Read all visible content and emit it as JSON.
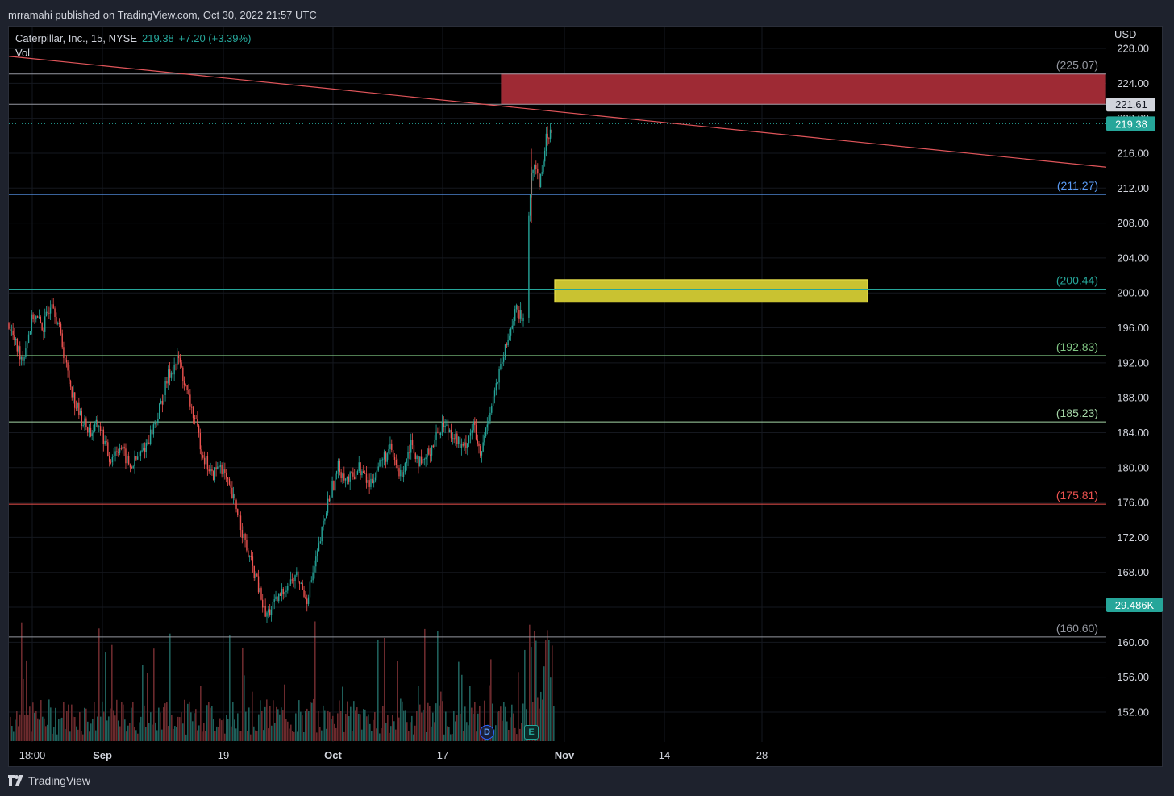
{
  "header": {
    "published_text": "mrramahi published on TradingView.com, Oct 30, 2022 21:57 UTC"
  },
  "legend": {
    "symbol": "Caterpillar, Inc., 15, NYSE",
    "price": "219.38",
    "change": "+7.20 (+3.39%)",
    "vol_label": "Vol"
  },
  "currency": "USD",
  "footer": {
    "brand": "TradingView"
  },
  "events": {
    "dividend": "D",
    "earnings": "E"
  },
  "colors": {
    "bg": "#000000",
    "up": "#26a69a",
    "down": "#ef5350",
    "resistance_zone": "#9e2a34",
    "support_zone": "#c9c231",
    "trendline": "#e0555a",
    "text": "#d1d4dc"
  },
  "chart_data": {
    "type": "candlestick",
    "symbol": "Caterpillar, Inc.",
    "interval": "15",
    "exchange": "NYSE",
    "ylim": [
      148,
      230
    ],
    "y_ticks": [
      "228.00",
      "224.00",
      "220.00",
      "216.00",
      "212.00",
      "208.00",
      "204.00",
      "200.00",
      "196.00",
      "192.00",
      "188.00",
      "184.00",
      "180.00",
      "176.00",
      "172.00",
      "168.00",
      "164.00",
      "160.00",
      "156.00",
      "152.00"
    ],
    "x_ticks": [
      "18:00",
      "Sep",
      "19",
      "Oct",
      "17",
      "Nov",
      "14",
      "28"
    ],
    "last_price": "219.38",
    "price_badges": [
      "221.61",
      "219.38"
    ],
    "volume_badge": "29.486K",
    "horizontal_levels": [
      {
        "label": "(225.07)",
        "value": 225.07,
        "color": "#9598a1"
      },
      {
        "label": "(211.27)",
        "value": 211.27,
        "color": "#5b9cf6"
      },
      {
        "label": "(200.44)",
        "value": 200.44,
        "color": "#26a69a"
      },
      {
        "label": "(192.83)",
        "value": 192.83,
        "color": "#81c784"
      },
      {
        "label": "(185.23)",
        "value": 185.23,
        "color": "#a5d6a7"
      },
      {
        "label": "(175.81)",
        "value": 175.81,
        "color": "#ef5350"
      },
      {
        "label": "(160.60)",
        "value": 160.6,
        "color": "#9598a1"
      }
    ],
    "zones": [
      {
        "name": "resistance",
        "low": 221.61,
        "high": 225.07
      },
      {
        "name": "support",
        "low": 199.5,
        "high": 201.6
      }
    ],
    "trendline": {
      "start": 227.1,
      "end": 214.4
    },
    "price_path": [
      [
        0.0,
        196.5
      ],
      [
        0.01,
        194.0
      ],
      [
        0.02,
        192.5
      ],
      [
        0.035,
        197.5
      ],
      [
        0.05,
        196.0
      ],
      [
        0.062,
        199.5
      ],
      [
        0.075,
        195.0
      ],
      [
        0.083,
        191.5
      ],
      [
        0.095,
        187.5
      ],
      [
        0.105,
        185.5
      ],
      [
        0.118,
        184.0
      ],
      [
        0.13,
        185.0
      ],
      [
        0.145,
        181.0
      ],
      [
        0.16,
        182.5
      ],
      [
        0.175,
        180.0
      ],
      [
        0.19,
        181.5
      ],
      [
        0.2,
        183.0
      ],
      [
        0.215,
        186.0
      ],
      [
        0.23,
        190.5
      ],
      [
        0.245,
        192.5
      ],
      [
        0.255,
        189.0
      ],
      [
        0.268,
        185.5
      ],
      [
        0.28,
        181.5
      ],
      [
        0.293,
        179.0
      ],
      [
        0.305,
        180.5
      ],
      [
        0.318,
        177.5
      ],
      [
        0.33,
        175.0
      ],
      [
        0.343,
        170.5
      ],
      [
        0.356,
        167.5
      ],
      [
        0.37,
        163.0
      ],
      [
        0.385,
        164.5
      ],
      [
        0.4,
        166.5
      ],
      [
        0.415,
        167.5
      ],
      [
        0.43,
        165.0
      ],
      [
        0.445,
        170.0
      ],
      [
        0.46,
        176.0
      ],
      [
        0.475,
        180.0
      ],
      [
        0.49,
        178.5
      ],
      [
        0.505,
        180.0
      ],
      [
        0.52,
        178.0
      ],
      [
        0.535,
        180.5
      ],
      [
        0.55,
        182.0
      ],
      [
        0.565,
        179.0
      ],
      [
        0.58,
        183.0
      ],
      [
        0.595,
        180.0
      ],
      [
        0.61,
        182.5
      ],
      [
        0.625,
        185.0
      ],
      [
        0.64,
        184.0
      ],
      [
        0.655,
        182.0
      ],
      [
        0.67,
        185.0
      ],
      [
        0.68,
        181.0
      ],
      [
        0.692,
        186.0
      ],
      [
        0.705,
        190.0
      ],
      [
        0.718,
        194.0
      ],
      [
        0.73,
        198.0
      ],
      [
        0.742,
        197.0
      ],
      [
        0.752,
        212.0
      ],
      [
        0.758,
        215.0
      ],
      [
        0.765,
        212.5
      ],
      [
        0.775,
        217.5
      ],
      [
        0.785,
        219.38
      ]
    ]
  }
}
